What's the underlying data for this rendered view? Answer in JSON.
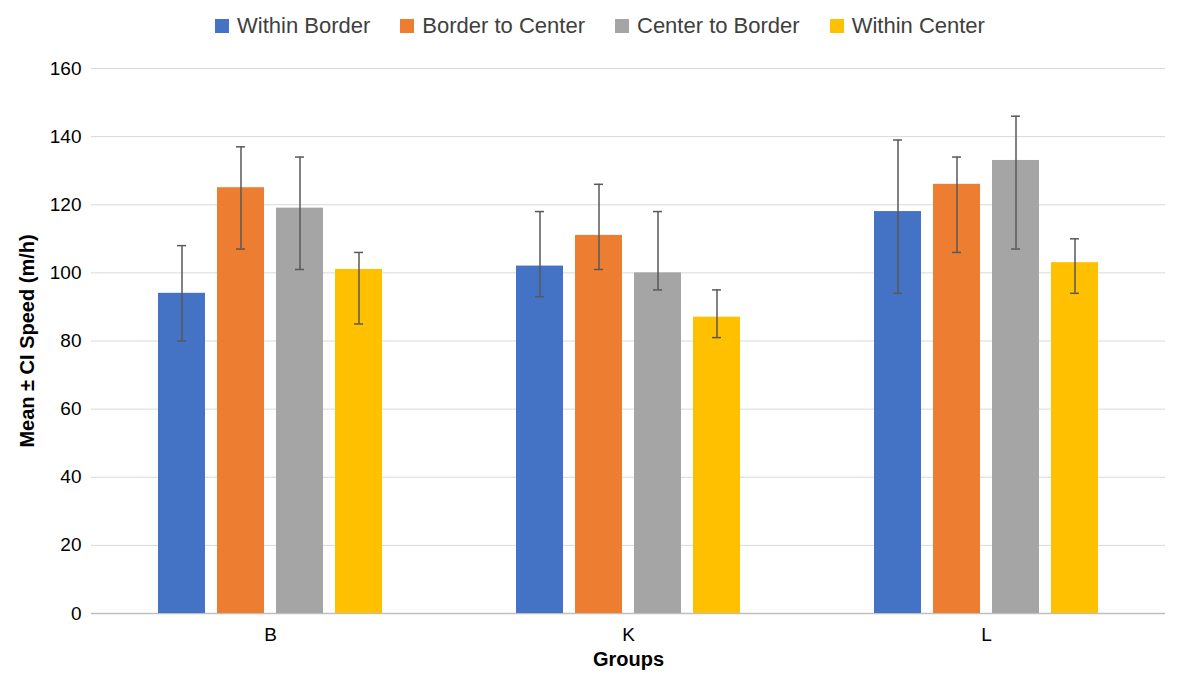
{
  "chart_data": {
    "type": "bar",
    "x_label": "Groups",
    "y_label": "Mean ± CI Speed (m/h)",
    "categories": [
      "B",
      "K",
      "L"
    ],
    "series": [
      {
        "name": "Within Border",
        "color": "#4472c4",
        "values": [
          94,
          102,
          118
        ],
        "ci_low": [
          80,
          93,
          94
        ],
        "ci_high": [
          108,
          118,
          139
        ]
      },
      {
        "name": "Border to Center",
        "color": "#ed7d31",
        "values": [
          125,
          111,
          126
        ],
        "ci_low": [
          107,
          101,
          106
        ],
        "ci_high": [
          137,
          126,
          134
        ]
      },
      {
        "name": "Center to Border",
        "color": "#a5a5a5",
        "values": [
          119,
          100,
          133
        ],
        "ci_low": [
          101,
          95,
          107
        ],
        "ci_high": [
          134,
          118,
          146
        ]
      },
      {
        "name": "Within Center",
        "color": "#ffc000",
        "values": [
          101,
          87,
          103
        ],
        "ci_low": [
          85,
          81,
          94
        ],
        "ci_high": [
          106,
          95,
          110
        ]
      }
    ],
    "ylim": [
      0,
      160
    ],
    "yticks": [
      0,
      20,
      40,
      60,
      80,
      100,
      120,
      140,
      160
    ],
    "grid": true,
    "legend": "top"
  }
}
